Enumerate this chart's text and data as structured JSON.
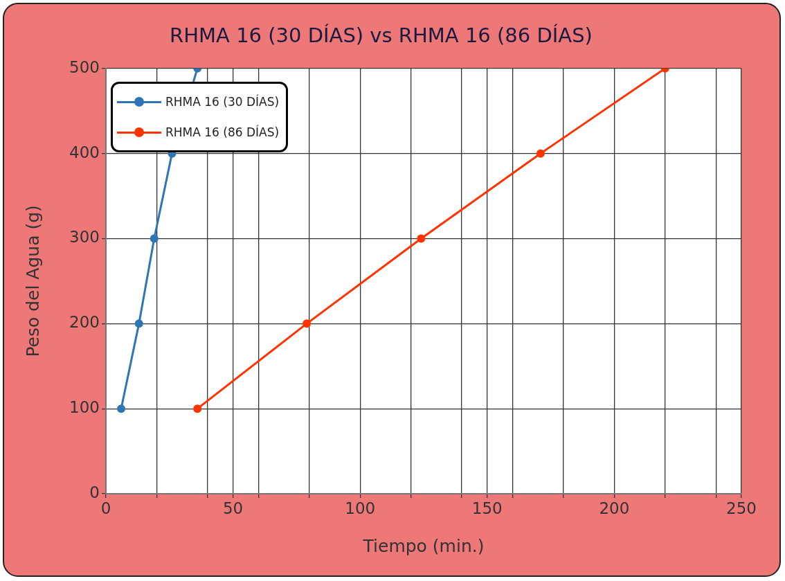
{
  "chart_data": {
    "type": "line",
    "title": "RHMA 16 (30 DÍAS) vs RHMA 16 (86 DÍAS)",
    "xlabel": "Tiempo (min.)",
    "ylabel": "Peso del Agua (g)",
    "series": [
      {
        "name": "RHMA 16 (30 DÍAS)",
        "color": "#2e75b6",
        "x": [
          6,
          13,
          19,
          26,
          36
        ],
        "values": [
          100,
          200,
          300,
          400,
          500
        ]
      },
      {
        "name": "RHMA 16 (86 DÍAS)",
        "color": "#ff3300",
        "x": [
          36,
          79,
          124,
          171,
          220
        ],
        "values": [
          100,
          200,
          300,
          400,
          500
        ]
      }
    ],
    "xlim": [
      0,
      250
    ],
    "xticks": [
      0,
      {
        "value": 20,
        "label": null
      },
      {
        "value": 40,
        "label": null
      },
      50,
      {
        "value": 60,
        "label": null
      },
      {
        "value": 80,
        "label": null
      },
      100,
      {
        "value": 120,
        "label": null
      },
      {
        "value": 140,
        "label": null
      },
      150,
      {
        "value": 160,
        "label": null
      },
      {
        "value": 180,
        "label": null
      },
      200,
      {
        "value": 220,
        "label": null
      },
      {
        "value": 240,
        "label": null
      },
      250
    ],
    "ylim": [
      0,
      500
    ],
    "yticks": [
      0,
      100,
      200,
      300,
      400,
      500
    ],
    "grid": true,
    "legend": "top left",
    "marker": "circle",
    "line_style": "solid"
  }
}
